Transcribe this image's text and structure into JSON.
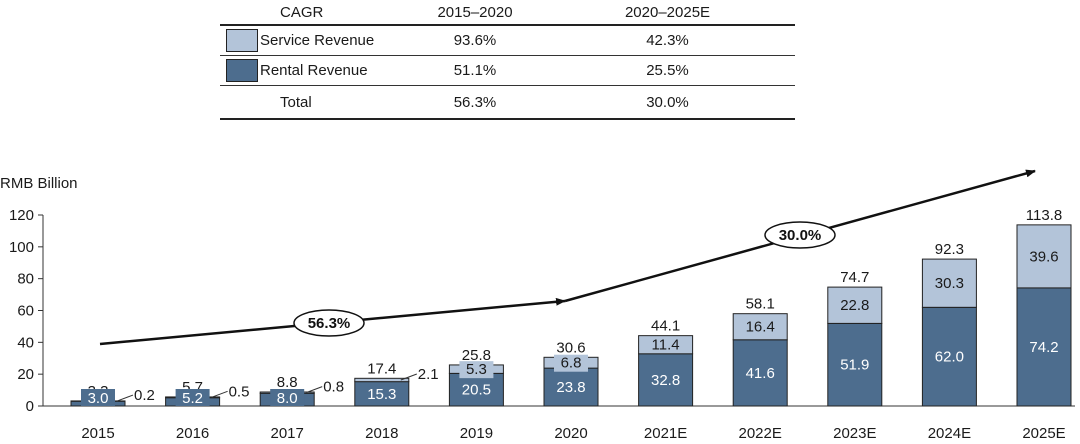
{
  "table": {
    "headers": [
      "CAGR",
      "2015–2020",
      "2020–2025E"
    ],
    "rows": [
      {
        "label": "Service Revenue",
        "v1": "93.6%",
        "v2": "42.3%"
      },
      {
        "label": "Rental Revenue",
        "v1": "51.1%",
        "v2": "25.5%"
      },
      {
        "label": "Total",
        "v1": "56.3%",
        "v2": "30.0%"
      }
    ]
  },
  "colors": {
    "service": "#b3c4d9",
    "rental": "#4d6d8e"
  },
  "chart_data": {
    "type": "bar",
    "stacked": true,
    "ylabel": "RMB Billion",
    "ylim": [
      0,
      120
    ],
    "yticks": [
      0,
      20,
      40,
      60,
      80,
      100,
      120
    ],
    "categories": [
      "2015",
      "2016",
      "2017",
      "2018",
      "2019",
      "2020",
      "2021E",
      "2022E",
      "2023E",
      "2024E",
      "2025E"
    ],
    "series": [
      {
        "name": "Rental Revenue",
        "values": [
          3.0,
          5.2,
          8.0,
          15.3,
          20.5,
          23.8,
          32.8,
          41.6,
          51.9,
          62.0,
          74.2
        ]
      },
      {
        "name": "Service Revenue",
        "values": [
          0.2,
          0.5,
          0.8,
          2.1,
          5.3,
          6.8,
          11.4,
          16.4,
          22.8,
          30.3,
          39.6
        ]
      }
    ],
    "totals": [
      "3.3",
      "5.7",
      "8.8",
      "17.4",
      "25.8",
      "30.6",
      "44.1",
      "58.1",
      "74.7",
      "92.3",
      "113.8"
    ],
    "annotations": [
      {
        "label": "56.3%",
        "period": "2015–2020"
      },
      {
        "label": "30.0%",
        "period": "2020–2025E"
      }
    ]
  }
}
